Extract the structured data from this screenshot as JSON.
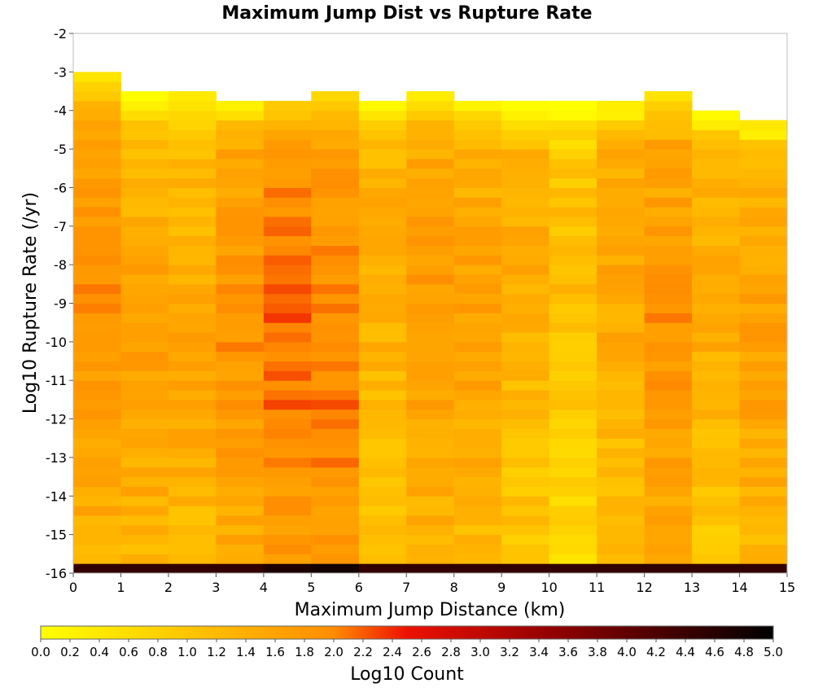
{
  "chart_data": {
    "type": "heatmap",
    "title": "Maximum Jump Dist vs Rupture Rate",
    "xlabel": "Maximum Jump Distance (km)",
    "ylabel": "Log10 Rupture Rate (/yr)",
    "colorbar_label": "Log10 Count",
    "xlim": [
      0,
      15
    ],
    "ylim": [
      -16,
      -2
    ],
    "x_ticks": [
      "0",
      "1",
      "2",
      "3",
      "4",
      "5",
      "6",
      "7",
      "8",
      "9",
      "10",
      "11",
      "12",
      "13",
      "14",
      "15"
    ],
    "y_ticks": [
      "-2",
      "-3",
      "-4",
      "-5",
      "-6",
      "-7",
      "-8",
      "-9",
      "-10",
      "-11",
      "-12",
      "-13",
      "-14",
      "-15",
      "-16"
    ],
    "color_range": [
      0,
      5
    ],
    "colorbar_ticks": [
      "0.0",
      "0.2",
      "0.4",
      "0.6",
      "0.8",
      "1.0",
      "1.2",
      "1.4",
      "1.6",
      "1.8",
      "2.0",
      "2.2",
      "2.4",
      "2.6",
      "2.8",
      "3.0",
      "3.2",
      "3.4",
      "3.6",
      "3.8",
      "4.0",
      "4.2",
      "4.4",
      "4.6",
      "4.8",
      "5.0"
    ],
    "colors": {
      "low": "#ffff00",
      "mid_low": "#ff8c00",
      "mid": "#ee1100",
      "mid_high": "#880000",
      "high": "#000000"
    },
    "bin_width_x": 1,
    "bin_height_y": 0.25,
    "grid": false,
    "column_bin_starts": [
      {
        "x": 0,
        "log_rate_min": -16,
        "log_rate_max": -3.0
      },
      {
        "x": 1,
        "log_rate_min": -16,
        "log_rate_max": -3.5
      },
      {
        "x": 2,
        "log_rate_min": -16,
        "log_rate_max": -3.5
      },
      {
        "x": 3,
        "log_rate_min": -16,
        "log_rate_max": -3.75
      },
      {
        "x": 4,
        "log_rate_min": -16,
        "log_rate_max": -3.75
      },
      {
        "x": 5,
        "log_rate_min": -16,
        "log_rate_max": -3.5
      },
      {
        "x": 6,
        "log_rate_min": -16,
        "log_rate_max": -3.75
      },
      {
        "x": 7,
        "log_rate_min": -16,
        "log_rate_max": -3.5
      },
      {
        "x": 8,
        "log_rate_min": -16,
        "log_rate_max": -3.75
      },
      {
        "x": 9,
        "log_rate_min": -16,
        "log_rate_max": -3.75
      },
      {
        "x": 10,
        "log_rate_min": -16,
        "log_rate_max": -3.75
      },
      {
        "x": 11,
        "log_rate_min": -16,
        "log_rate_max": -3.75
      },
      {
        "x": 12,
        "log_rate_min": -16,
        "log_rate_max": -3.5
      },
      {
        "x": 13,
        "log_rate_min": -16,
        "log_rate_max": -4.0
      },
      {
        "x": 14,
        "log_rate_min": -16,
        "log_rate_max": -4.25
      }
    ],
    "column_mean_log_count": [
      1.6,
      1.4,
      1.3,
      1.6,
      1.9,
      1.8,
      1.2,
      1.5,
      1.4,
      1.2,
      0.9,
      1.3,
      1.6,
      1.2,
      1.4
    ],
    "bottom_row_log_count": [
      4.5,
      4.5,
      4.5,
      4.5,
      4.7,
      4.8,
      4.5,
      4.5,
      4.5,
      4.5,
      4.5,
      4.5,
      4.5,
      4.5,
      4.5
    ],
    "peak_log_rate": [
      -8.5,
      -10.5,
      -10.5,
      -10.0,
      -9.75,
      -10.75,
      -8.0,
      -9.5,
      -9.5,
      -8.0,
      -8.5,
      -8.0,
      -10.0,
      -9.0,
      -10.0
    ]
  }
}
